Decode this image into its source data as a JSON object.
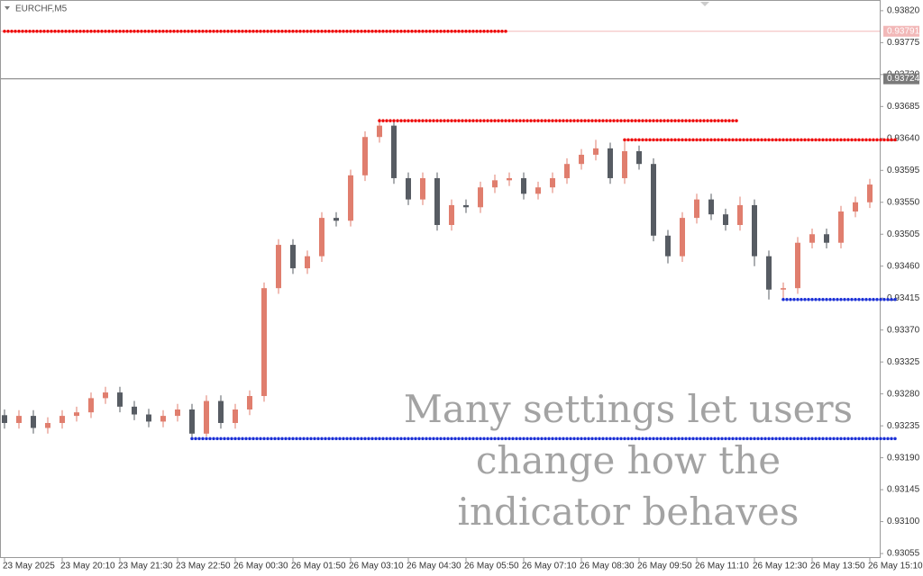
{
  "chart_data": {
    "type": "candlestick",
    "title": "EURCHF,M5",
    "overlay_text": [
      "Many settings let users",
      "change how the",
      "indicator behaves"
    ],
    "categories": [
      "23 May 2025",
      null,
      null,
      null,
      "23 May 20:10",
      null,
      null,
      null,
      "23 May 21:30",
      null,
      null,
      null,
      "23 May 22:50",
      null,
      null,
      null,
      "26 May 00:30",
      null,
      null,
      null,
      "26 May 01:50",
      null,
      null,
      null,
      "26 May 03:10",
      null,
      null,
      null,
      "26 May 04:30",
      null,
      null,
      null,
      "26 May 05:50",
      null,
      null,
      null,
      "26 May 07:10",
      null,
      null,
      null,
      "26 May 08:30",
      null,
      null,
      null,
      "26 May 09:50",
      null,
      null,
      null,
      "26 May 11:10",
      null,
      null,
      null,
      "26 May 12:30",
      null,
      null,
      null,
      "26 May 13:50",
      null,
      null,
      null,
      "26 May 15:10"
    ],
    "open": [
      0.9325,
      0.93239,
      0.93249,
      0.93232,
      0.93239,
      0.93249,
      0.93254,
      0.93274,
      0.93282,
      0.93262,
      0.93251,
      0.93241,
      0.93249,
      0.93258,
      0.93224,
      0.9327,
      0.93239,
      0.93258,
      0.93277,
      0.93429,
      0.9349,
      0.93457,
      0.93474,
      0.93528,
      0.93524,
      0.93588,
      0.93642,
      0.93658,
      0.93584,
      0.93554,
      0.93584,
      0.93518,
      0.93546,
      0.93543,
      0.93571,
      0.93581,
      0.93584,
      0.93562,
      0.93571,
      0.93584,
      0.93604,
      0.93617,
      0.93626,
      0.93584,
      0.93622,
      0.93604,
      0.93503,
      0.93474,
      0.93528,
      0.93554,
      0.93533,
      0.93518,
      0.93546,
      0.93474,
      0.93427,
      0.93429,
      0.93493,
      0.93505,
      0.93493,
      0.93537,
      0.9355
    ],
    "high": [
      0.93258,
      0.93257,
      0.93257,
      0.93247,
      0.93257,
      0.93262,
      0.93282,
      0.9329,
      0.9329,
      0.9327,
      0.93259,
      0.93257,
      0.93266,
      0.93266,
      0.93278,
      0.93278,
      0.93266,
      0.93285,
      0.93437,
      0.93498,
      0.93498,
      0.93482,
      0.93536,
      0.93536,
      0.93596,
      0.9365,
      0.93668,
      0.93664,
      0.93592,
      0.93592,
      0.93592,
      0.93554,
      0.93554,
      0.93579,
      0.93589,
      0.93592,
      0.93592,
      0.93579,
      0.93592,
      0.93612,
      0.93625,
      0.93638,
      0.93634,
      0.93636,
      0.9363,
      0.93612,
      0.93511,
      0.93536,
      0.93562,
      0.93562,
      0.93541,
      0.93558,
      0.93554,
      0.93482,
      0.93437,
      0.93501,
      0.93513,
      0.93513,
      0.93545,
      0.93558,
      0.93583
    ],
    "low": [
      0.93231,
      0.93231,
      0.93224,
      0.93224,
      0.93231,
      0.93241,
      0.93246,
      0.93266,
      0.93254,
      0.93243,
      0.93233,
      0.93233,
      0.93241,
      0.93217,
      0.9322,
      0.93231,
      0.93231,
      0.9325,
      0.93269,
      0.93421,
      0.93449,
      0.93449,
      0.93466,
      0.93516,
      0.93516,
      0.9358,
      0.93634,
      0.93576,
      0.93546,
      0.93546,
      0.9351,
      0.9351,
      0.93535,
      0.93535,
      0.93563,
      0.93573,
      0.93554,
      0.93554,
      0.93563,
      0.93576,
      0.93596,
      0.93609,
      0.93576,
      0.93576,
      0.93596,
      0.93495,
      0.93464,
      0.93466,
      0.9352,
      0.93525,
      0.9351,
      0.9351,
      0.9346,
      0.93413,
      0.93415,
      0.93421,
      0.93485,
      0.93485,
      0.93485,
      0.93529,
      0.93542
    ],
    "close": [
      0.93239,
      0.93249,
      0.93232,
      0.93239,
      0.93249,
      0.93254,
      0.93274,
      0.93282,
      0.93262,
      0.93251,
      0.93241,
      0.93249,
      0.93258,
      0.93224,
      0.9327,
      0.93239,
      0.93258,
      0.93277,
      0.93429,
      0.9349,
      0.93457,
      0.93474,
      0.93528,
      0.93524,
      0.93588,
      0.93642,
      0.93658,
      0.93584,
      0.93554,
      0.93584,
      0.93518,
      0.93546,
      0.93543,
      0.93571,
      0.93581,
      0.93584,
      0.93562,
      0.93571,
      0.93584,
      0.93604,
      0.93617,
      0.93626,
      0.93584,
      0.93622,
      0.93604,
      0.93503,
      0.93474,
      0.93528,
      0.93554,
      0.93533,
      0.93518,
      0.93546,
      0.93474,
      0.93427,
      0.93429,
      0.93493,
      0.93505,
      0.93493,
      0.93537,
      0.9355,
      0.93575
    ],
    "up_color": "#e07e6e",
    "down_color": "#575c63",
    "levels": [
      {
        "value": 0.93791,
        "start": 0,
        "end": 35,
        "color": "#ee0000"
      },
      {
        "value": 0.93665,
        "start": 26,
        "end": 51,
        "color": "#ee0000"
      },
      {
        "value": 0.93638,
        "start": 43,
        "end": 62,
        "color": "#ee0000"
      },
      {
        "value": 0.93413,
        "start": 54,
        "end": 62,
        "color": "#1a2fd6"
      },
      {
        "value": 0.93217,
        "start": 13,
        "end": 62,
        "color": "#1a2fd6"
      }
    ],
    "price_labels": [
      {
        "value": 0.93791,
        "label": "0.93791",
        "color": "#f2b8b8"
      },
      {
        "value": 0.93724,
        "label": "0.93724",
        "color": "#7a7a7a"
      }
    ],
    "ylim": [
      0.9305,
      0.9383
    ],
    "yticks": [
      {
        "value": 0.9382,
        "label": "0.93820"
      },
      {
        "value": 0.93775,
        "label": "0.93775"
      },
      {
        "value": 0.9373,
        "label": "0.93730"
      },
      {
        "value": 0.93685,
        "label": "0.93685"
      },
      {
        "value": 0.9364,
        "label": "0.93640"
      },
      {
        "value": 0.93595,
        "label": "0.93595"
      },
      {
        "value": 0.9355,
        "label": "0.93550"
      },
      {
        "value": 0.93505,
        "label": "0.93505"
      },
      {
        "value": 0.9346,
        "label": "0.93460"
      },
      {
        "value": 0.93415,
        "label": "0.93415"
      },
      {
        "value": 0.9337,
        "label": "0.93370"
      },
      {
        "value": 0.93325,
        "label": "0.93325"
      },
      {
        "value": 0.9328,
        "label": "0.93280"
      },
      {
        "value": 0.93235,
        "label": "0.93235"
      },
      {
        "value": 0.9319,
        "label": "0.93190"
      },
      {
        "value": 0.93145,
        "label": "0.93145"
      },
      {
        "value": 0.931,
        "label": "0.93100"
      },
      {
        "value": 0.93055,
        "label": "0.93055"
      }
    ]
  }
}
